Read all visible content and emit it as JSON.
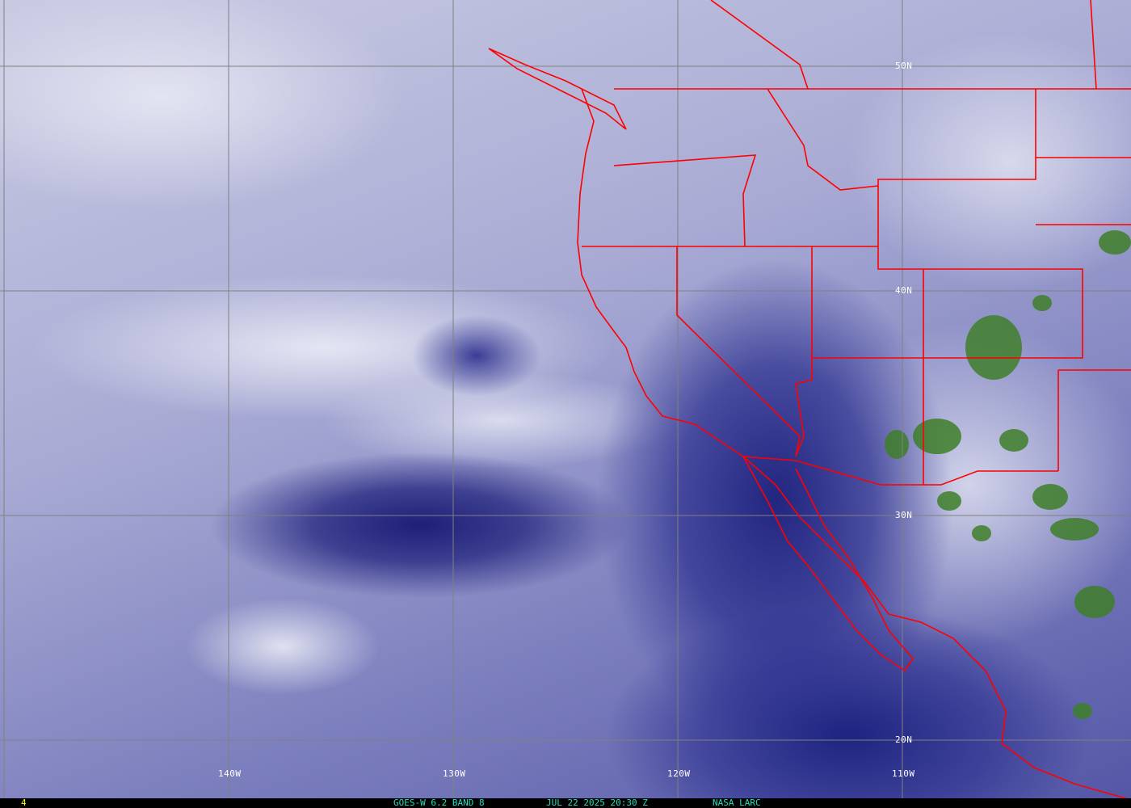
{
  "map": {
    "longitude_labels": [
      "140W",
      "130W",
      "120W",
      "110W"
    ],
    "latitude_labels": [
      "50N",
      "40N",
      "30N",
      "20N"
    ],
    "grid_color": "#808080",
    "border_color": "#ff0000",
    "convection_color": "#3f7f2a"
  },
  "status_bar": {
    "frame_number": "4",
    "satellite": "GOES-W 6.2 BAND 8",
    "datetime": "JUL 22 2025 20:30 Z",
    "source": "NASA LARC",
    "frame_color": "#ffff00",
    "text_color": "#20e0c0"
  }
}
